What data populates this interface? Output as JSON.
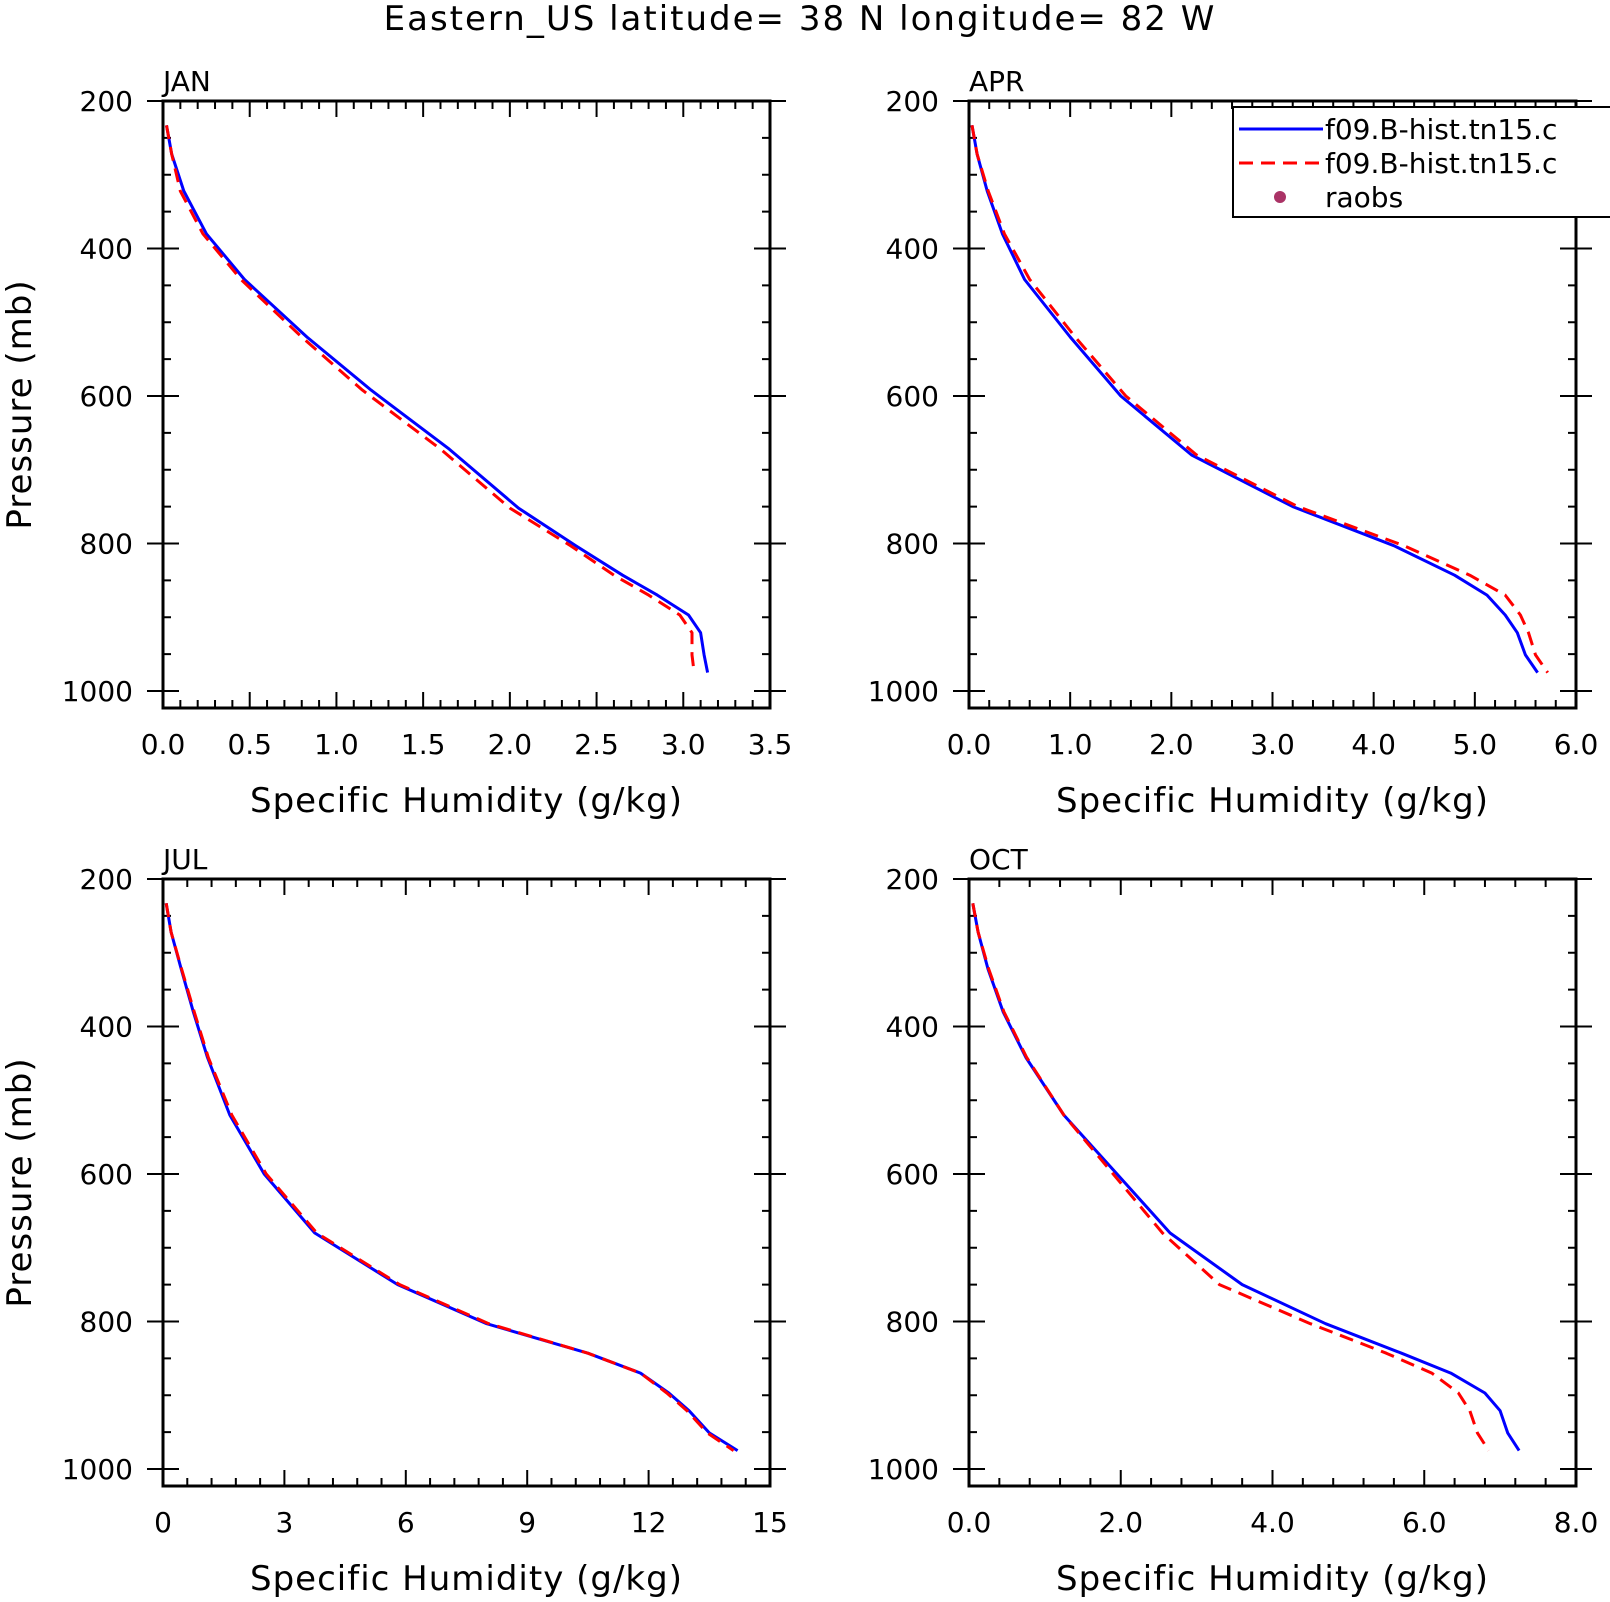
{
  "chart_data": {
    "title": "Eastern_US  latitude= 38 N longitude= 82 W",
    "panels": [
      {
        "type": "line",
        "title": "JAN",
        "xlabel": "Specific Humidity (g/kg)",
        "ylabel": "Pressure (mb)",
        "xlim": [
          0,
          3.5
        ],
        "ylim": [
          200,
          1000
        ],
        "y_inverted": true,
        "xticks": [
          "0.0",
          "0.5",
          "1.0",
          "1.5",
          "2.0",
          "2.5",
          "3.0",
          "3.5"
        ],
        "xtick_values": [
          0,
          0.5,
          1.0,
          1.5,
          2.0,
          2.5,
          3.0,
          3.5
        ],
        "yticks": [
          "200",
          "400",
          "600",
          "800",
          "1000"
        ],
        "ytick_values": [
          200,
          400,
          600,
          800,
          1000
        ],
        "series": [
          {
            "color": "#0000ff",
            "dash": "solid",
            "x": [
              0.02,
              0.05,
              0.12,
              0.25,
              0.47,
              0.83,
              1.2,
              1.65,
              2.05,
              2.38,
              2.65,
              2.85,
              3.03,
              3.1,
              3.12,
              3.14
            ],
            "y": [
              233,
              272,
              322,
              380,
              442,
              520,
              592,
              672,
              752,
              803,
              843,
              870,
              897,
              921,
              951,
              975
            ]
          },
          {
            "color": "#ff0000",
            "dash": "dashed",
            "x": [
              0.02,
              0.05,
              0.1,
              0.23,
              0.45,
              0.8,
              1.15,
              1.6,
              2.0,
              2.35,
              2.6,
              2.8,
              2.98,
              3.05,
              3.05,
              3.06
            ],
            "y": [
              233,
              272,
              322,
              380,
              442,
              520,
              592,
              672,
              752,
              803,
              843,
              870,
              897,
              921,
              951,
              970
            ]
          }
        ]
      },
      {
        "type": "line",
        "title": "APR",
        "xlabel": "Specific Humidity (g/kg)",
        "ylabel": "",
        "xlim": [
          0,
          6
        ],
        "ylim": [
          200,
          1000
        ],
        "y_inverted": true,
        "xticks": [
          "0.0",
          "1.0",
          "2.0",
          "3.0",
          "4.0",
          "5.0",
          "6.0"
        ],
        "xtick_values": [
          0,
          1,
          2,
          3,
          4,
          5,
          6
        ],
        "yticks": [
          "200",
          "400",
          "600",
          "800",
          "1000"
        ],
        "ytick_values": [
          200,
          400,
          600,
          800,
          1000
        ],
        "series": [
          {
            "color": "#0000ff",
            "dash": "solid",
            "x": [
              0.03,
              0.08,
              0.18,
              0.33,
              0.55,
              1.0,
              1.5,
              2.2,
              3.2,
              4.2,
              4.8,
              5.12,
              5.3,
              5.42,
              5.5,
              5.62
            ],
            "y": [
              233,
              272,
              322,
              380,
              442,
              520,
              600,
              680,
              750,
              803,
              843,
              870,
              897,
              921,
              951,
              975
            ]
          },
          {
            "color": "#ff0000",
            "dash": "dashed",
            "x": [
              0.03,
              0.08,
              0.19,
              0.35,
              0.6,
              1.05,
              1.55,
              2.25,
              3.25,
              4.3,
              4.95,
              5.3,
              5.45,
              5.53,
              5.6,
              5.72
            ],
            "y": [
              233,
              272,
              322,
              380,
              442,
              520,
              600,
              680,
              750,
              803,
              843,
              870,
              897,
              921,
              951,
              975
            ]
          }
        ]
      },
      {
        "type": "line",
        "title": "JUL",
        "xlabel": "Specific Humidity (g/kg)",
        "ylabel": "Pressure (mb)",
        "xlim": [
          0,
          15
        ],
        "ylim": [
          200,
          1000
        ],
        "y_inverted": true,
        "xticks": [
          "0",
          "3",
          "6",
          "9",
          "12",
          "15"
        ],
        "xtick_values": [
          0,
          3,
          6,
          9,
          12,
          15
        ],
        "yticks": [
          "200",
          "400",
          "600",
          "800",
          "1000"
        ],
        "ytick_values": [
          200,
          400,
          600,
          800,
          1000
        ],
        "series": [
          {
            "color": "#0000ff",
            "dash": "solid",
            "x": [
              0.08,
              0.2,
              0.45,
              0.75,
              1.1,
              1.65,
              2.5,
              3.75,
              5.8,
              8.0,
              10.5,
              11.8,
              12.5,
              13.0,
              13.5,
              14.2
            ],
            "y": [
              233,
              272,
              322,
              380,
              442,
              520,
              600,
              680,
              750,
              803,
              843,
              870,
              897,
              921,
              951,
              975
            ]
          },
          {
            "color": "#ff0000",
            "dash": "dashed",
            "x": [
              0.08,
              0.2,
              0.46,
              0.77,
              1.12,
              1.7,
              2.55,
              3.8,
              5.85,
              8.05,
              10.5,
              11.8,
              12.45,
              12.95,
              13.45,
              14.1
            ],
            "y": [
              233,
              272,
              322,
              380,
              442,
              520,
              600,
              680,
              750,
              803,
              843,
              870,
              897,
              921,
              951,
              975
            ]
          }
        ]
      },
      {
        "type": "line",
        "title": "OCT",
        "xlabel": "Specific Humidity (g/kg)",
        "ylabel": "",
        "xlim": [
          0,
          8
        ],
        "ylim": [
          200,
          1000
        ],
        "y_inverted": true,
        "xticks": [
          "0.0",
          "2.0",
          "4.0",
          "6.0",
          "8.0"
        ],
        "xtick_values": [
          0,
          2,
          4,
          6,
          8
        ],
        "yticks": [
          "200",
          "400",
          "600",
          "800",
          "1000"
        ],
        "ytick_values": [
          200,
          400,
          600,
          800,
          1000
        ],
        "series": [
          {
            "color": "#0000ff",
            "dash": "solid",
            "x": [
              0.05,
              0.12,
              0.25,
              0.45,
              0.75,
              1.25,
              1.95,
              2.65,
              3.6,
              4.7,
              5.7,
              6.35,
              6.8,
              7.0,
              7.1,
              7.25
            ],
            "y": [
              233,
              272,
              322,
              380,
              442,
              520,
              600,
              680,
              750,
              803,
              843,
              870,
              897,
              921,
              951,
              975
            ]
          },
          {
            "color": "#ff0000",
            "dash": "dashed",
            "x": [
              0.05,
              0.12,
              0.26,
              0.46,
              0.76,
              1.25,
              1.9,
              2.55,
              3.3,
              4.5,
              5.5,
              6.1,
              6.45,
              6.6,
              6.7,
              6.85
            ],
            "y": [
              233,
              272,
              322,
              380,
              442,
              520,
              600,
              680,
              750,
              803,
              843,
              870,
              897,
              921,
              951,
              975
            ]
          }
        ]
      }
    ],
    "legend": {
      "placement": "top-right of APR panel",
      "entries": [
        {
          "label": "f09.B-hist.tn15.c",
          "color": "#0000ff",
          "style": "solid-line"
        },
        {
          "label": "f09.B-hist.tn15.c",
          "color": "#ff0000",
          "style": "dashed-line"
        },
        {
          "label": "raobs",
          "color": "#aa3366",
          "style": "dot"
        }
      ]
    }
  }
}
